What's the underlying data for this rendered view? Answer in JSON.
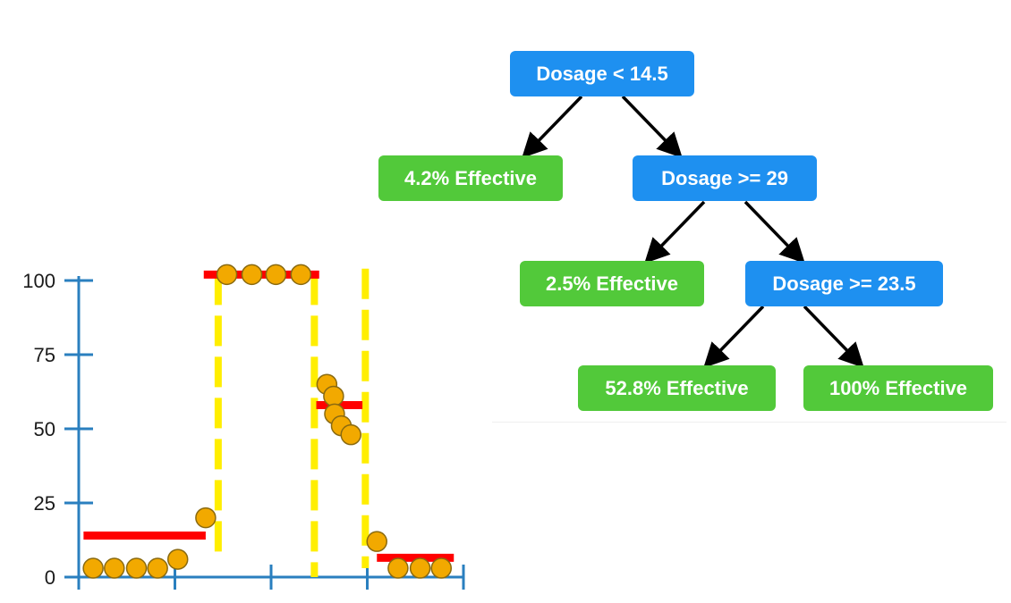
{
  "chart_data": {
    "type": "scatter",
    "title": "",
    "xlabel": "",
    "ylabel": "",
    "ylim": [
      0,
      100
    ],
    "yticks": [
      0,
      25,
      50,
      75,
      100
    ],
    "xticks": [
      0,
      10,
      20,
      30,
      40
    ],
    "xlim": [
      0,
      40
    ],
    "grid": false,
    "colors": {
      "axis": "#2a7fbf",
      "points": "#f2a900",
      "point_stroke": "#8a6a10",
      "prediction": "#ff0000",
      "threshold": "#ffee00"
    },
    "series": [
      {
        "values": [
          {
            "x": 1.5,
            "y": 3
          },
          {
            "x": 3.7,
            "y": 3
          },
          {
            "x": 6.0,
            "y": 3
          },
          {
            "x": 8.2,
            "y": 3
          },
          {
            "x": 10.3,
            "y": 6
          },
          {
            "x": 13.2,
            "y": 20
          },
          {
            "x": 15.4,
            "y": 102
          },
          {
            "x": 18.0,
            "y": 102
          },
          {
            "x": 20.5,
            "y": 102
          },
          {
            "x": 23.1,
            "y": 102
          },
          {
            "x": 25.8,
            "y": 65
          },
          {
            "x": 26.5,
            "y": 61
          },
          {
            "x": 26.6,
            "y": 55
          },
          {
            "x": 27.3,
            "y": 51
          },
          {
            "x": 28.3,
            "y": 48
          },
          {
            "x": 31.0,
            "y": 12
          },
          {
            "x": 33.2,
            "y": 3
          },
          {
            "x": 35.5,
            "y": 3
          },
          {
            "x": 37.7,
            "y": 3
          }
        ]
      }
    ],
    "prediction_lines": [
      {
        "x_start": 0.5,
        "x_end": 13.2,
        "y": 14
      },
      {
        "x_start": 13.0,
        "x_end": 25.0,
        "y": 102
      },
      {
        "x_start": 24.7,
        "x_end": 29.5,
        "y": 58
      },
      {
        "x_start": 31.0,
        "x_end": 39.0,
        "y": 6.5
      }
    ],
    "threshold_lines": [
      {
        "x": 14.5,
        "y_top": 102,
        "y_bottom": 6
      },
      {
        "x": 24.5,
        "y_top": 102,
        "y_bottom": 0
      },
      {
        "x": 29.8,
        "y_top": 104,
        "y_bottom": 3
      }
    ]
  },
  "tree": {
    "root": {
      "label": "Dosage < 14.5"
    },
    "leaf_1": {
      "label": "4.2% Effective"
    },
    "node_2": {
      "label": "Dosage >= 29"
    },
    "leaf_2": {
      "label": "2.5% Effective"
    },
    "node_3": {
      "label": "Dosage >= 23.5"
    },
    "leaf_3": {
      "label": "52.8% Effective"
    },
    "leaf_4": {
      "label": "100% Effective"
    },
    "colors": {
      "decision": "#1e90f0",
      "leaf": "#52c93a",
      "arrow": "#000000"
    }
  }
}
